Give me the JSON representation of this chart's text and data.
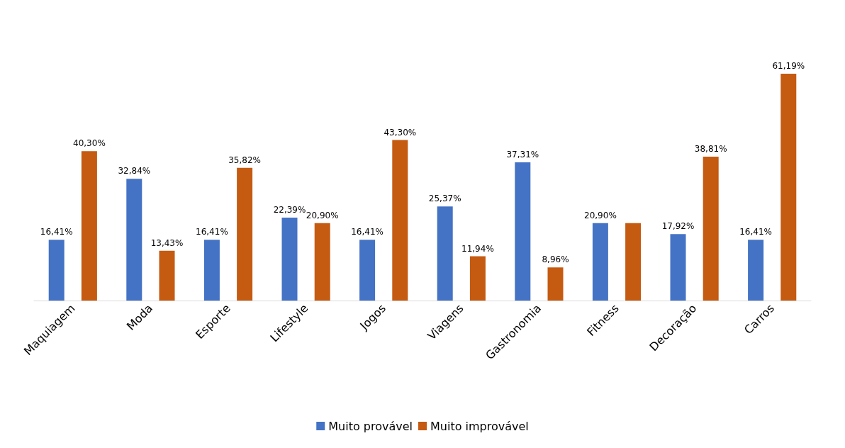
{
  "chart_data": {
    "type": "bar",
    "categories": [
      "Maquiagem",
      "Moda",
      "Esporte",
      "Lifestyle",
      "Jogos",
      "Viagens",
      "Gastronomia",
      "Fitness",
      "Decoração",
      "Carros"
    ],
    "series": [
      {
        "name": "Muito provável",
        "color": "#4472c4",
        "values": [
          16.41,
          32.84,
          16.41,
          22.39,
          16.41,
          25.37,
          37.31,
          20.9,
          17.92,
          16.41
        ],
        "value_labels": [
          "16,41%",
          "32,84%",
          "16,41%",
          "22,39%",
          "16,41%",
          "25,37%",
          "37,31%",
          "20,90%",
          "17,92%",
          "16,41%"
        ]
      },
      {
        "name": "Muito improvável",
        "color": "#c55a11",
        "values": [
          40.3,
          13.43,
          35.82,
          20.9,
          43.3,
          11.94,
          8.96,
          20.9,
          38.81,
          61.19
        ],
        "value_labels": [
          "40,30%",
          "13,43%",
          "35,82%",
          "20,90%",
          "43,30%",
          "11,94%",
          "8,96%",
          null,
          "38,81%",
          "61,19%"
        ]
      }
    ],
    "legend": "bottom"
  }
}
